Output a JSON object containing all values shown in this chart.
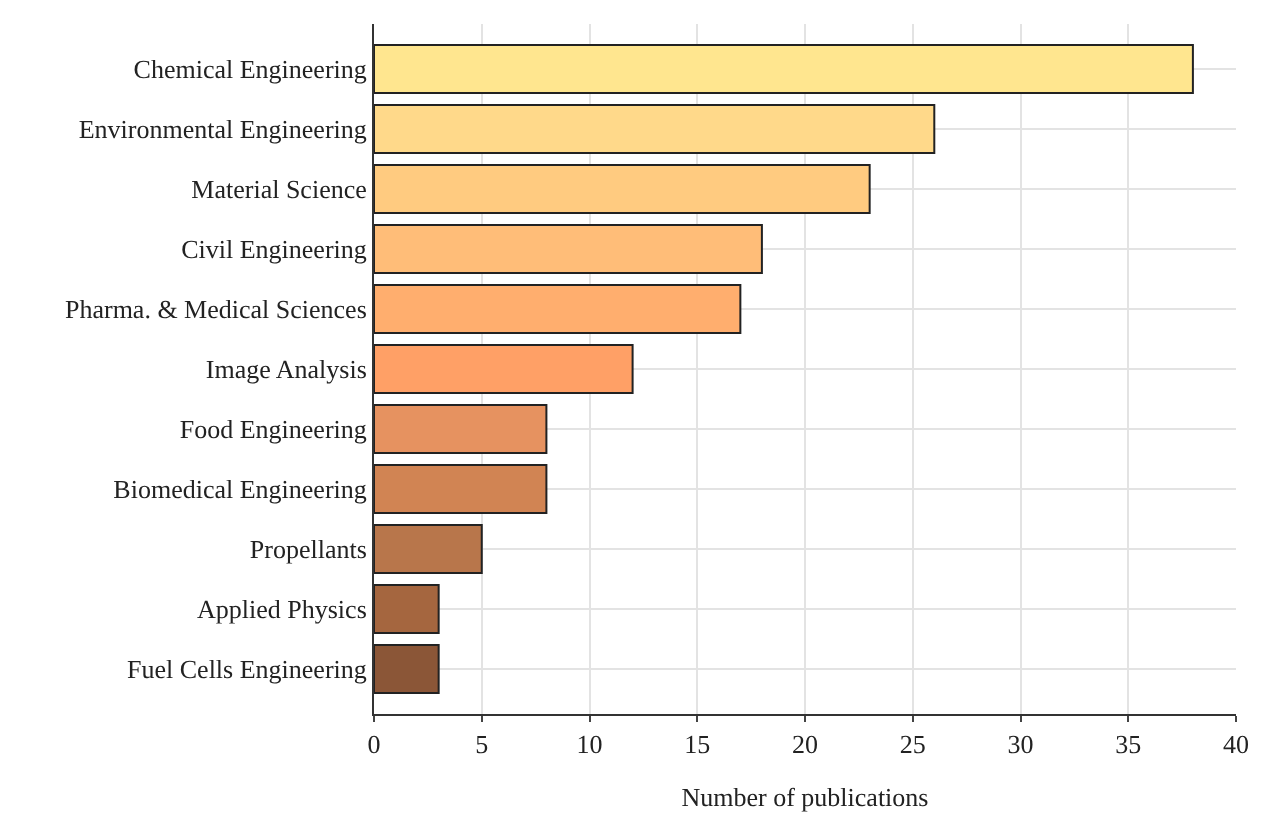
{
  "chart_data": {
    "type": "bar",
    "orientation": "horizontal",
    "xlabel": "Number of publications",
    "categories": [
      "Chemical Engineering",
      "Environmental Engineering",
      "Material Science",
      "Civil Engineering",
      "Pharma. & Medical Sciences",
      "Image Analysis",
      "Food Engineering",
      "Biomedical Engineering",
      "Propellants",
      "Applied Physics",
      "Fuel Cells Engineering"
    ],
    "values": [
      38,
      26,
      23,
      18,
      17,
      12,
      8,
      8,
      5,
      3,
      3
    ],
    "colors": [
      "#ffe68f",
      "#ffd98a",
      "#ffcb80",
      "#ffbd78",
      "#ffae6e",
      "#ffa066",
      "#e69260",
      "#d18453",
      "#b8764b",
      "#a5663f",
      "#8b5637"
    ],
    "xlim": [
      0,
      40
    ],
    "xticks": [
      0,
      5,
      10,
      15,
      20,
      25,
      30,
      35,
      40
    ],
    "grid": true
  }
}
